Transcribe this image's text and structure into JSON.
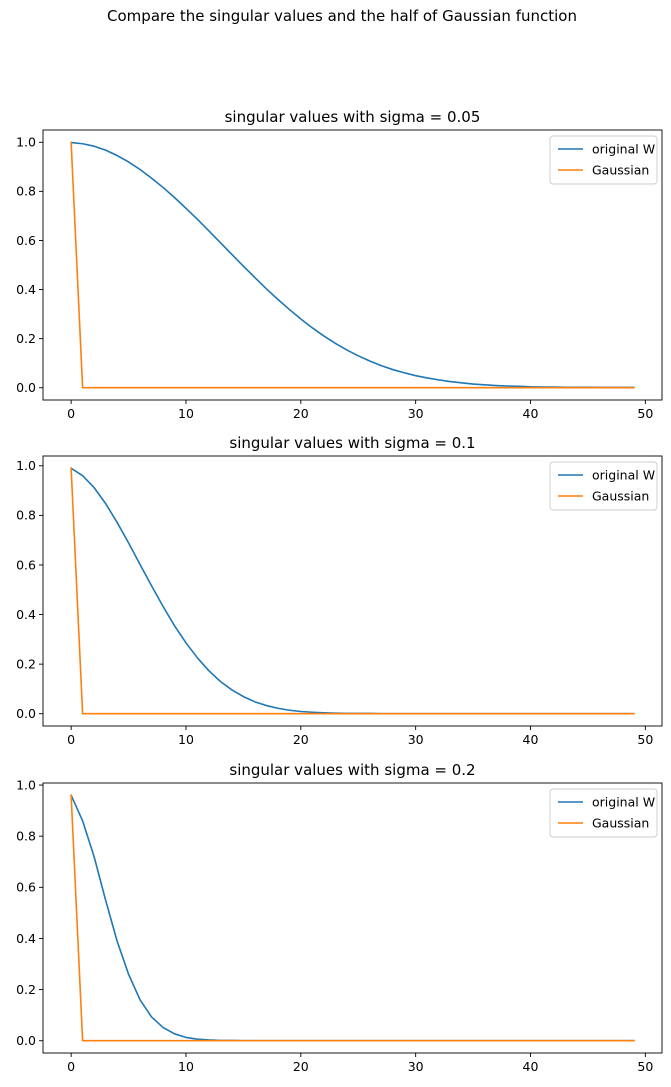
{
  "figure": {
    "suptitle": "Compare the singular values and the half of Gaussian function"
  },
  "colors": {
    "original_w": "#1f77b4",
    "gaussian": "#ff7f0e",
    "axes": "#000000",
    "legend_border": "#cccccc"
  },
  "chart_data": [
    {
      "type": "line",
      "title": "singular values with sigma = 0.05",
      "xlabel": "",
      "ylabel": "",
      "xlim": [
        -2.45,
        51.45
      ],
      "ylim": [
        -0.05,
        1.05
      ],
      "xticks": [
        0,
        10,
        20,
        30,
        40,
        50
      ],
      "yticks": [
        0.0,
        0.2,
        0.4,
        0.6,
        0.8,
        1.0
      ],
      "grid": false,
      "legend_position": "upper right",
      "series": [
        {
          "name": "original W",
          "color_key": "original_w",
          "x": [
            0,
            1,
            2,
            3,
            4,
            5,
            6,
            7,
            8,
            9,
            10,
            11,
            12,
            13,
            14,
            15,
            16,
            17,
            18,
            19,
            20,
            21,
            22,
            23,
            24,
            25,
            26,
            27,
            28,
            29,
            30,
            31,
            32,
            33,
            34,
            35,
            36,
            37,
            38,
            39,
            40,
            41,
            42,
            43,
            44,
            45,
            46,
            47,
            48,
            49
          ],
          "y": [
            0.999,
            0.994,
            0.984,
            0.968,
            0.946,
            0.92,
            0.889,
            0.854,
            0.816,
            0.775,
            0.731,
            0.686,
            0.639,
            0.591,
            0.543,
            0.495,
            0.449,
            0.403,
            0.36,
            0.319,
            0.28,
            0.244,
            0.211,
            0.181,
            0.154,
            0.13,
            0.109,
            0.09,
            0.074,
            0.061,
            0.049,
            0.04,
            0.032,
            0.025,
            0.02,
            0.015,
            0.012,
            0.009,
            0.007,
            0.006,
            0.004,
            0.003,
            0.003,
            0.002,
            0.002,
            0.002,
            0.001,
            0.001,
            0.001,
            0.001
          ]
        },
        {
          "name": "Gaussian",
          "color_key": "gaussian",
          "x": [
            0,
            1,
            2,
            3,
            4,
            5,
            6,
            7,
            8,
            9,
            10,
            11,
            12,
            13,
            14,
            15,
            16,
            17,
            18,
            19,
            20,
            21,
            22,
            23,
            24,
            25,
            26,
            27,
            28,
            29,
            30,
            31,
            32,
            33,
            34,
            35,
            36,
            37,
            38,
            39,
            40,
            41,
            42,
            43,
            44,
            45,
            46,
            47,
            48,
            49
          ],
          "y": [
            0.999,
            0,
            0,
            0,
            0,
            0,
            0,
            0,
            0,
            0,
            0,
            0,
            0,
            0,
            0,
            0,
            0,
            0,
            0,
            0,
            0,
            0,
            0,
            0,
            0,
            0,
            0,
            0,
            0,
            0,
            0,
            0,
            0,
            0,
            0,
            0,
            0,
            0,
            0,
            0,
            0,
            0,
            0,
            0,
            0,
            0,
            0,
            0,
            0,
            0
          ]
        }
      ]
    },
    {
      "type": "line",
      "title": "singular values with sigma = 0.1",
      "xlabel": "",
      "ylabel": "",
      "xlim": [
        -2.45,
        51.45
      ],
      "ylim": [
        -0.0495,
        1.0395
      ],
      "xticks": [
        0,
        10,
        20,
        30,
        40,
        50
      ],
      "yticks": [
        0.0,
        0.2,
        0.4,
        0.6,
        0.8,
        1.0
      ],
      "grid": false,
      "legend_position": "upper right",
      "series": [
        {
          "name": "original W",
          "color_key": "original_w",
          "x": [
            0,
            1,
            2,
            3,
            4,
            5,
            6,
            7,
            8,
            9,
            10,
            11,
            12,
            13,
            14,
            15,
            16,
            17,
            18,
            19,
            20,
            21,
            22,
            23,
            24,
            25,
            26,
            27,
            28,
            29,
            30,
            31,
            32,
            33,
            34,
            35,
            36,
            37,
            38,
            39,
            40,
            41,
            42,
            43,
            44,
            45,
            46,
            47,
            48,
            49
          ],
          "y": [
            0.99,
            0.96,
            0.912,
            0.848,
            0.772,
            0.689,
            0.602,
            0.516,
            0.433,
            0.355,
            0.286,
            0.225,
            0.173,
            0.13,
            0.096,
            0.069,
            0.048,
            0.033,
            0.022,
            0.014,
            0.009,
            0.006,
            0.004,
            0.002,
            0.001,
            0.001,
            0.001,
            0,
            0,
            0,
            0,
            0,
            0,
            0,
            0,
            0,
            0,
            0,
            0,
            0,
            0,
            0,
            0,
            0,
            0,
            0,
            0,
            0,
            0,
            0
          ]
        },
        {
          "name": "Gaussian",
          "color_key": "gaussian",
          "x": [
            0,
            1,
            2,
            3,
            4,
            5,
            6,
            7,
            8,
            9,
            10,
            11,
            12,
            13,
            14,
            15,
            16,
            17,
            18,
            19,
            20,
            21,
            22,
            23,
            24,
            25,
            26,
            27,
            28,
            29,
            30,
            31,
            32,
            33,
            34,
            35,
            36,
            37,
            38,
            39,
            40,
            41,
            42,
            43,
            44,
            45,
            46,
            47,
            48,
            49
          ],
          "y": [
            0.99,
            0,
            0,
            0,
            0,
            0,
            0,
            0,
            0,
            0,
            0,
            0,
            0,
            0,
            0,
            0,
            0,
            0,
            0,
            0,
            0,
            0,
            0,
            0,
            0,
            0,
            0,
            0,
            0,
            0,
            0,
            0,
            0,
            0,
            0,
            0,
            0,
            0,
            0,
            0,
            0,
            0,
            0,
            0,
            0,
            0,
            0,
            0,
            0,
            0
          ]
        }
      ]
    },
    {
      "type": "line",
      "title": "singular values with sigma = 0.2",
      "xlabel": "",
      "ylabel": "",
      "xlim": [
        -2.45,
        51.45
      ],
      "ylim": [
        -0.048,
        1.008
      ],
      "xticks": [
        0,
        10,
        20,
        30,
        40,
        50
      ],
      "yticks": [
        0.0,
        0.2,
        0.4,
        0.6,
        0.8,
        1.0
      ],
      "grid": false,
      "legend_position": "upper right",
      "series": [
        {
          "name": "original W",
          "color_key": "original_w",
          "x": [
            0,
            1,
            2,
            3,
            4,
            5,
            6,
            7,
            8,
            9,
            10,
            11,
            12,
            13,
            14,
            15,
            16,
            17,
            18,
            19,
            20,
            21,
            22,
            23,
            24,
            25,
            26,
            27,
            28,
            29,
            30,
            31,
            32,
            33,
            34,
            35,
            36,
            37,
            38,
            39,
            40,
            41,
            42,
            43,
            44,
            45,
            46,
            47,
            48,
            49
          ],
          "y": [
            0.96,
            0.86,
            0.72,
            0.55,
            0.39,
            0.26,
            0.16,
            0.093,
            0.052,
            0.027,
            0.013,
            0.006,
            0.003,
            0.001,
            0.001,
            0,
            0,
            0,
            0,
            0,
            0,
            0,
            0,
            0,
            0,
            0,
            0,
            0,
            0,
            0,
            0,
            0,
            0,
            0,
            0,
            0,
            0,
            0,
            0,
            0,
            0,
            0,
            0,
            0,
            0,
            0,
            0,
            0,
            0,
            0
          ]
        },
        {
          "name": "Gaussian",
          "color_key": "gaussian",
          "x": [
            0,
            1,
            2,
            3,
            4,
            5,
            6,
            7,
            8,
            9,
            10,
            11,
            12,
            13,
            14,
            15,
            16,
            17,
            18,
            19,
            20,
            21,
            22,
            23,
            24,
            25,
            26,
            27,
            28,
            29,
            30,
            31,
            32,
            33,
            34,
            35,
            36,
            37,
            38,
            39,
            40,
            41,
            42,
            43,
            44,
            45,
            46,
            47,
            48,
            49
          ],
          "y": [
            0.96,
            0,
            0,
            0,
            0,
            0,
            0,
            0,
            0,
            0,
            0,
            0,
            0,
            0,
            0,
            0,
            0,
            0,
            0,
            0,
            0,
            0,
            0,
            0,
            0,
            0,
            0,
            0,
            0,
            0,
            0,
            0,
            0,
            0,
            0,
            0,
            0,
            0,
            0,
            0,
            0,
            0,
            0,
            0,
            0,
            0,
            0,
            0,
            0,
            0
          ]
        }
      ]
    }
  ]
}
